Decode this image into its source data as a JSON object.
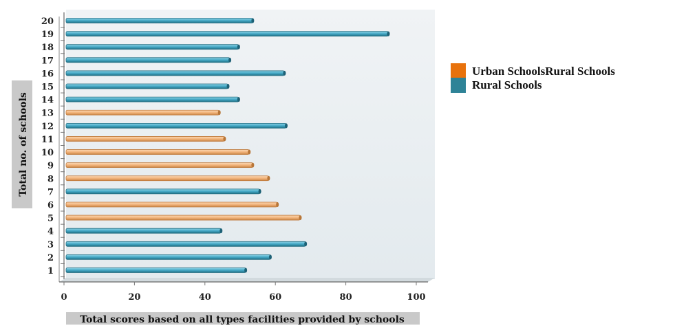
{
  "chart_data": {
    "type": "bar",
    "orientation": "horizontal",
    "categories": [
      "1",
      "2",
      "3",
      "4",
      "5",
      "6",
      "7",
      "8",
      "9",
      "10",
      "11",
      "12",
      "13",
      "14",
      "15",
      "16",
      "17",
      "18",
      "19",
      "20"
    ],
    "values": [
      51,
      58,
      68,
      44,
      66.5,
      60,
      55,
      57.5,
      53,
      52,
      45,
      62.5,
      43.5,
      49,
      46,
      62,
      46.5,
      49,
      91.5,
      53
    ],
    "groups": [
      "Rural Schools",
      "Rural Schools",
      "Rural Schools",
      "Rural Schools",
      "Urban Schools",
      "Urban Schools",
      "Rural Schools",
      "Urban Schools",
      "Urban Schools",
      "Urban Schools",
      "Urban Schools",
      "Rural Schools",
      "Urban Schools",
      "Rural Schools",
      "Rural Schools",
      "Rural Schools",
      "Rural Schools",
      "Rural Schools",
      "Rural Schools",
      "Rural Schools"
    ],
    "xlabel": "Total scores based on all types facilities provided by schools",
    "ylabel": "Total no. of schools",
    "xlim": [
      0,
      100
    ],
    "xticks": [
      "0",
      "20",
      "40",
      "60",
      "80",
      "100"
    ],
    "grid": false,
    "legend_position": "right",
    "legend": [
      {
        "name": "Urban SchoolsRural Schools",
        "color": "#e8720c"
      },
      {
        "name": "Rural Schools",
        "color": "#2e8397"
      }
    ],
    "colors": {
      "urban_bar": "#f2b47c",
      "urban_bar_edge": "#c07a3c",
      "rural_bar": "#4aaecb",
      "rural_bar_edge": "#236e82",
      "plot_background": "#e7edf1"
    }
  }
}
